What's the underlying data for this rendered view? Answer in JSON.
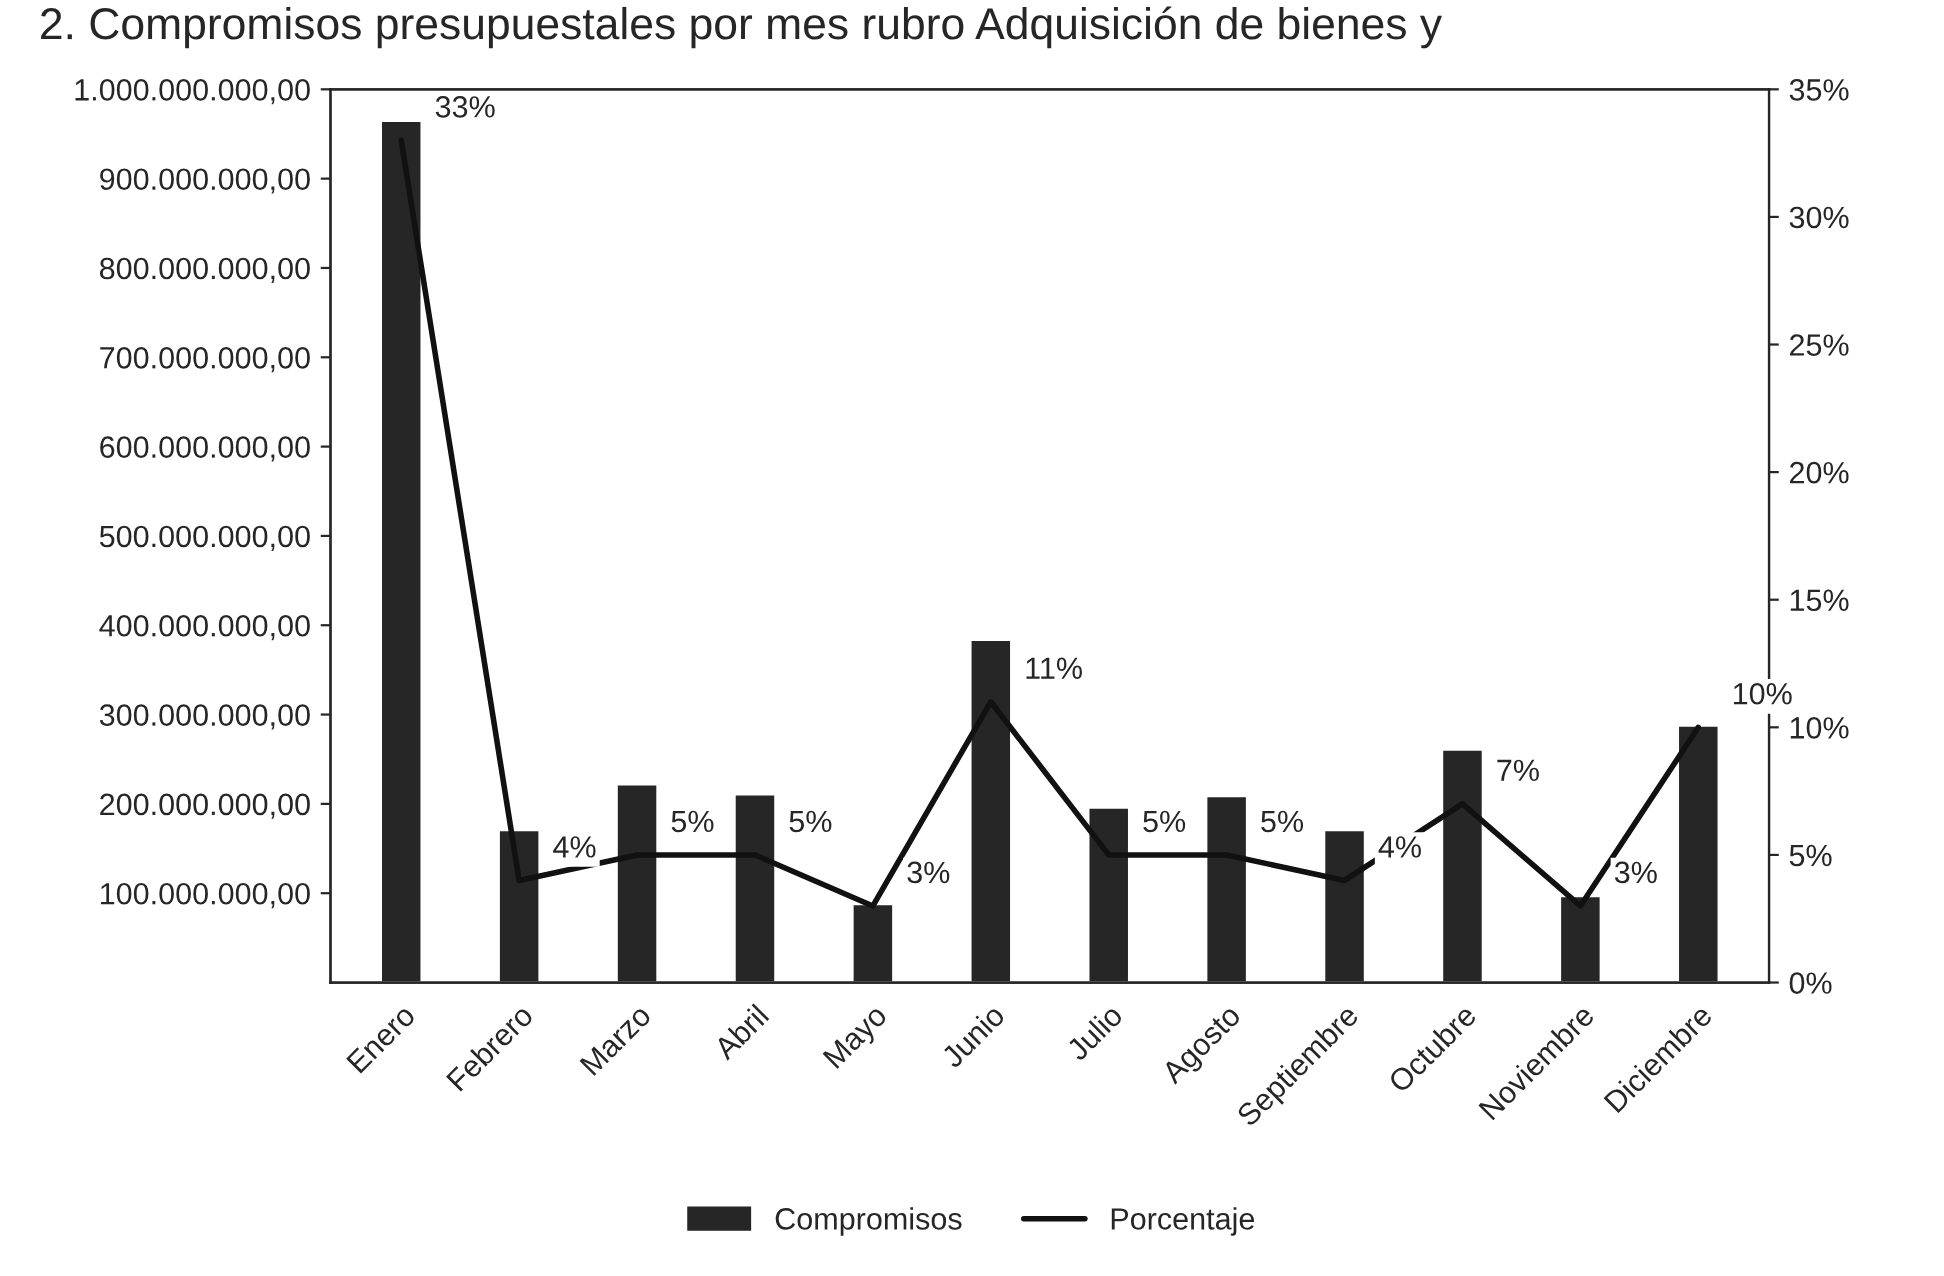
{
  "chart_data": {
    "type": "bar",
    "title": "2. Compromisos presupuestales por mes rubro Adquisición de bienes y",
    "categories": [
      "Enero",
      "Febrero",
      "Marzo",
      "Abril",
      "Mayo",
      "Junio",
      "Julio",
      "Agosto",
      "Septiembre",
      "Octubre",
      "Noviembre",
      "Diciembre"
    ],
    "series": [
      {
        "name": "Compromisos",
        "color": "#262626",
        "values": [
          965000000,
          171000000,
          222000000,
          211000000,
          88000000,
          384000000,
          196000000,
          209000000,
          171000000,
          261000000,
          97000000,
          288000000
        ]
      },
      {
        "name": "Porcentaje",
        "type": "line",
        "axis": "y2",
        "color": "#111111",
        "data_labels": true,
        "value_labels": [
          "33%",
          "4%",
          "5%",
          "5%",
          "3%",
          "11%",
          "5%",
          "5%",
          "4%",
          "7%",
          "3%",
          "10%"
        ],
        "values": [
          33,
          4,
          5,
          5,
          3,
          11,
          5,
          5,
          4,
          7,
          3,
          10
        ]
      }
    ],
    "ylim": [
      0,
      1000000000
    ],
    "yticks": [
      {
        "value": 100000000,
        "label": "100.000.000,00"
      },
      {
        "value": 200000000,
        "label": "200.000.000,00"
      },
      {
        "value": 300000000,
        "label": "300.000.000,00"
      },
      {
        "value": 400000000,
        "label": "400.000.000,00"
      },
      {
        "value": 500000000,
        "label": "500.000.000,00"
      },
      {
        "value": 600000000,
        "label": "600.000.000,00"
      },
      {
        "value": 700000000,
        "label": "700.000.000,00"
      },
      {
        "value": 800000000,
        "label": "800.000.000,00"
      },
      {
        "value": 900000000,
        "label": "900.000.000,00"
      },
      {
        "value": 1000000000,
        "label": "1.000.000.000,00"
      }
    ],
    "y2lim": [
      0,
      35
    ],
    "y2ticks": [
      {
        "value": 0,
        "label": "0%"
      },
      {
        "value": 5,
        "label": "5%"
      },
      {
        "value": 10,
        "label": "10%"
      },
      {
        "value": 15,
        "label": "15%"
      },
      {
        "value": 20,
        "label": "20%"
      },
      {
        "value": 25,
        "label": "25%"
      },
      {
        "value": 30,
        "label": "30%"
      },
      {
        "value": 35,
        "label": "35%"
      }
    ],
    "grid": false,
    "legend": "bottom",
    "marker": "none",
    "line_style": "solid"
  }
}
